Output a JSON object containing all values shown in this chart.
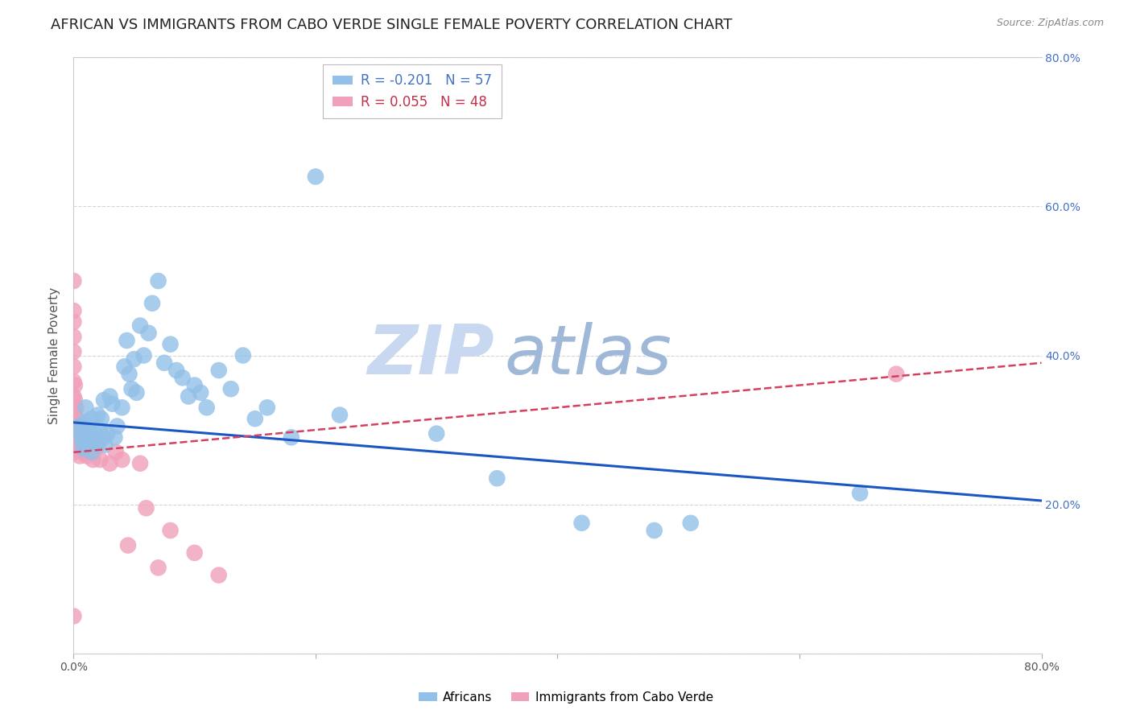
{
  "title": "AFRICAN VS IMMIGRANTS FROM CABO VERDE SINGLE FEMALE POVERTY CORRELATION CHART",
  "source": "Source: ZipAtlas.com",
  "xlabel": "",
  "ylabel": "Single Female Poverty",
  "xlim": [
    0.0,
    0.8
  ],
  "ylim": [
    0.0,
    0.8
  ],
  "background_color": "#ffffff",
  "grid_color": "#d0d0d0",
  "title_fontsize": 13,
  "axis_label_fontsize": 11,
  "tick_fontsize": 10,
  "legend_R_african": "-0.201",
  "legend_N_african": "57",
  "legend_R_cabo": "0.055",
  "legend_N_cabo": "48",
  "african_color": "#92c0e8",
  "cabo_color": "#f0a0b8",
  "african_line_color": "#1a56c4",
  "cabo_line_color": "#d44060",
  "watermark_zip_color": "#c8d8f0",
  "watermark_atlas_color": "#a0b8d8",
  "africans_x": [
    0.005,
    0.005,
    0.007,
    0.008,
    0.009,
    0.01,
    0.012,
    0.013,
    0.014,
    0.015,
    0.015,
    0.018,
    0.02,
    0.021,
    0.022,
    0.023,
    0.025,
    0.026,
    0.028,
    0.03,
    0.032,
    0.034,
    0.036,
    0.04,
    0.042,
    0.044,
    0.046,
    0.048,
    0.05,
    0.052,
    0.055,
    0.058,
    0.062,
    0.065,
    0.07,
    0.075,
    0.08,
    0.085,
    0.09,
    0.095,
    0.1,
    0.105,
    0.11,
    0.12,
    0.13,
    0.14,
    0.15,
    0.16,
    0.18,
    0.2,
    0.22,
    0.3,
    0.35,
    0.42,
    0.48,
    0.51,
    0.65
  ],
  "africans_y": [
    0.295,
    0.305,
    0.285,
    0.275,
    0.31,
    0.33,
    0.28,
    0.3,
    0.29,
    0.315,
    0.27,
    0.295,
    0.32,
    0.285,
    0.3,
    0.315,
    0.34,
    0.28,
    0.295,
    0.345,
    0.335,
    0.29,
    0.305,
    0.33,
    0.385,
    0.42,
    0.375,
    0.355,
    0.395,
    0.35,
    0.44,
    0.4,
    0.43,
    0.47,
    0.5,
    0.39,
    0.415,
    0.38,
    0.37,
    0.345,
    0.36,
    0.35,
    0.33,
    0.38,
    0.355,
    0.4,
    0.315,
    0.33,
    0.29,
    0.64,
    0.32,
    0.295,
    0.235,
    0.175,
    0.165,
    0.175,
    0.215
  ],
  "cabo_x": [
    0.0,
    0.0,
    0.0,
    0.0,
    0.0,
    0.0,
    0.0,
    0.0,
    0.0,
    0.0,
    0.0,
    0.0,
    0.0,
    0.001,
    0.001,
    0.001,
    0.002,
    0.002,
    0.003,
    0.003,
    0.004,
    0.005,
    0.005,
    0.006,
    0.007,
    0.008,
    0.009,
    0.01,
    0.011,
    0.012,
    0.013,
    0.015,
    0.016,
    0.018,
    0.02,
    0.022,
    0.025,
    0.03,
    0.035,
    0.04,
    0.045,
    0.055,
    0.06,
    0.07,
    0.08,
    0.1,
    0.12,
    0.68
  ],
  "cabo_y": [
    0.5,
    0.46,
    0.445,
    0.425,
    0.405,
    0.385,
    0.365,
    0.345,
    0.33,
    0.31,
    0.29,
    0.27,
    0.05,
    0.36,
    0.34,
    0.32,
    0.33,
    0.3,
    0.29,
    0.275,
    0.285,
    0.31,
    0.265,
    0.3,
    0.28,
    0.295,
    0.27,
    0.29,
    0.265,
    0.28,
    0.27,
    0.285,
    0.26,
    0.275,
    0.28,
    0.26,
    0.29,
    0.255,
    0.27,
    0.26,
    0.145,
    0.255,
    0.195,
    0.115,
    0.165,
    0.135,
    0.105,
    0.375
  ],
  "african_trendline_x": [
    0.0,
    0.8
  ],
  "african_trendline_y": [
    0.31,
    0.205
  ],
  "cabo_trendline_x": [
    0.0,
    0.8
  ],
  "cabo_trendline_y": [
    0.27,
    0.39
  ]
}
